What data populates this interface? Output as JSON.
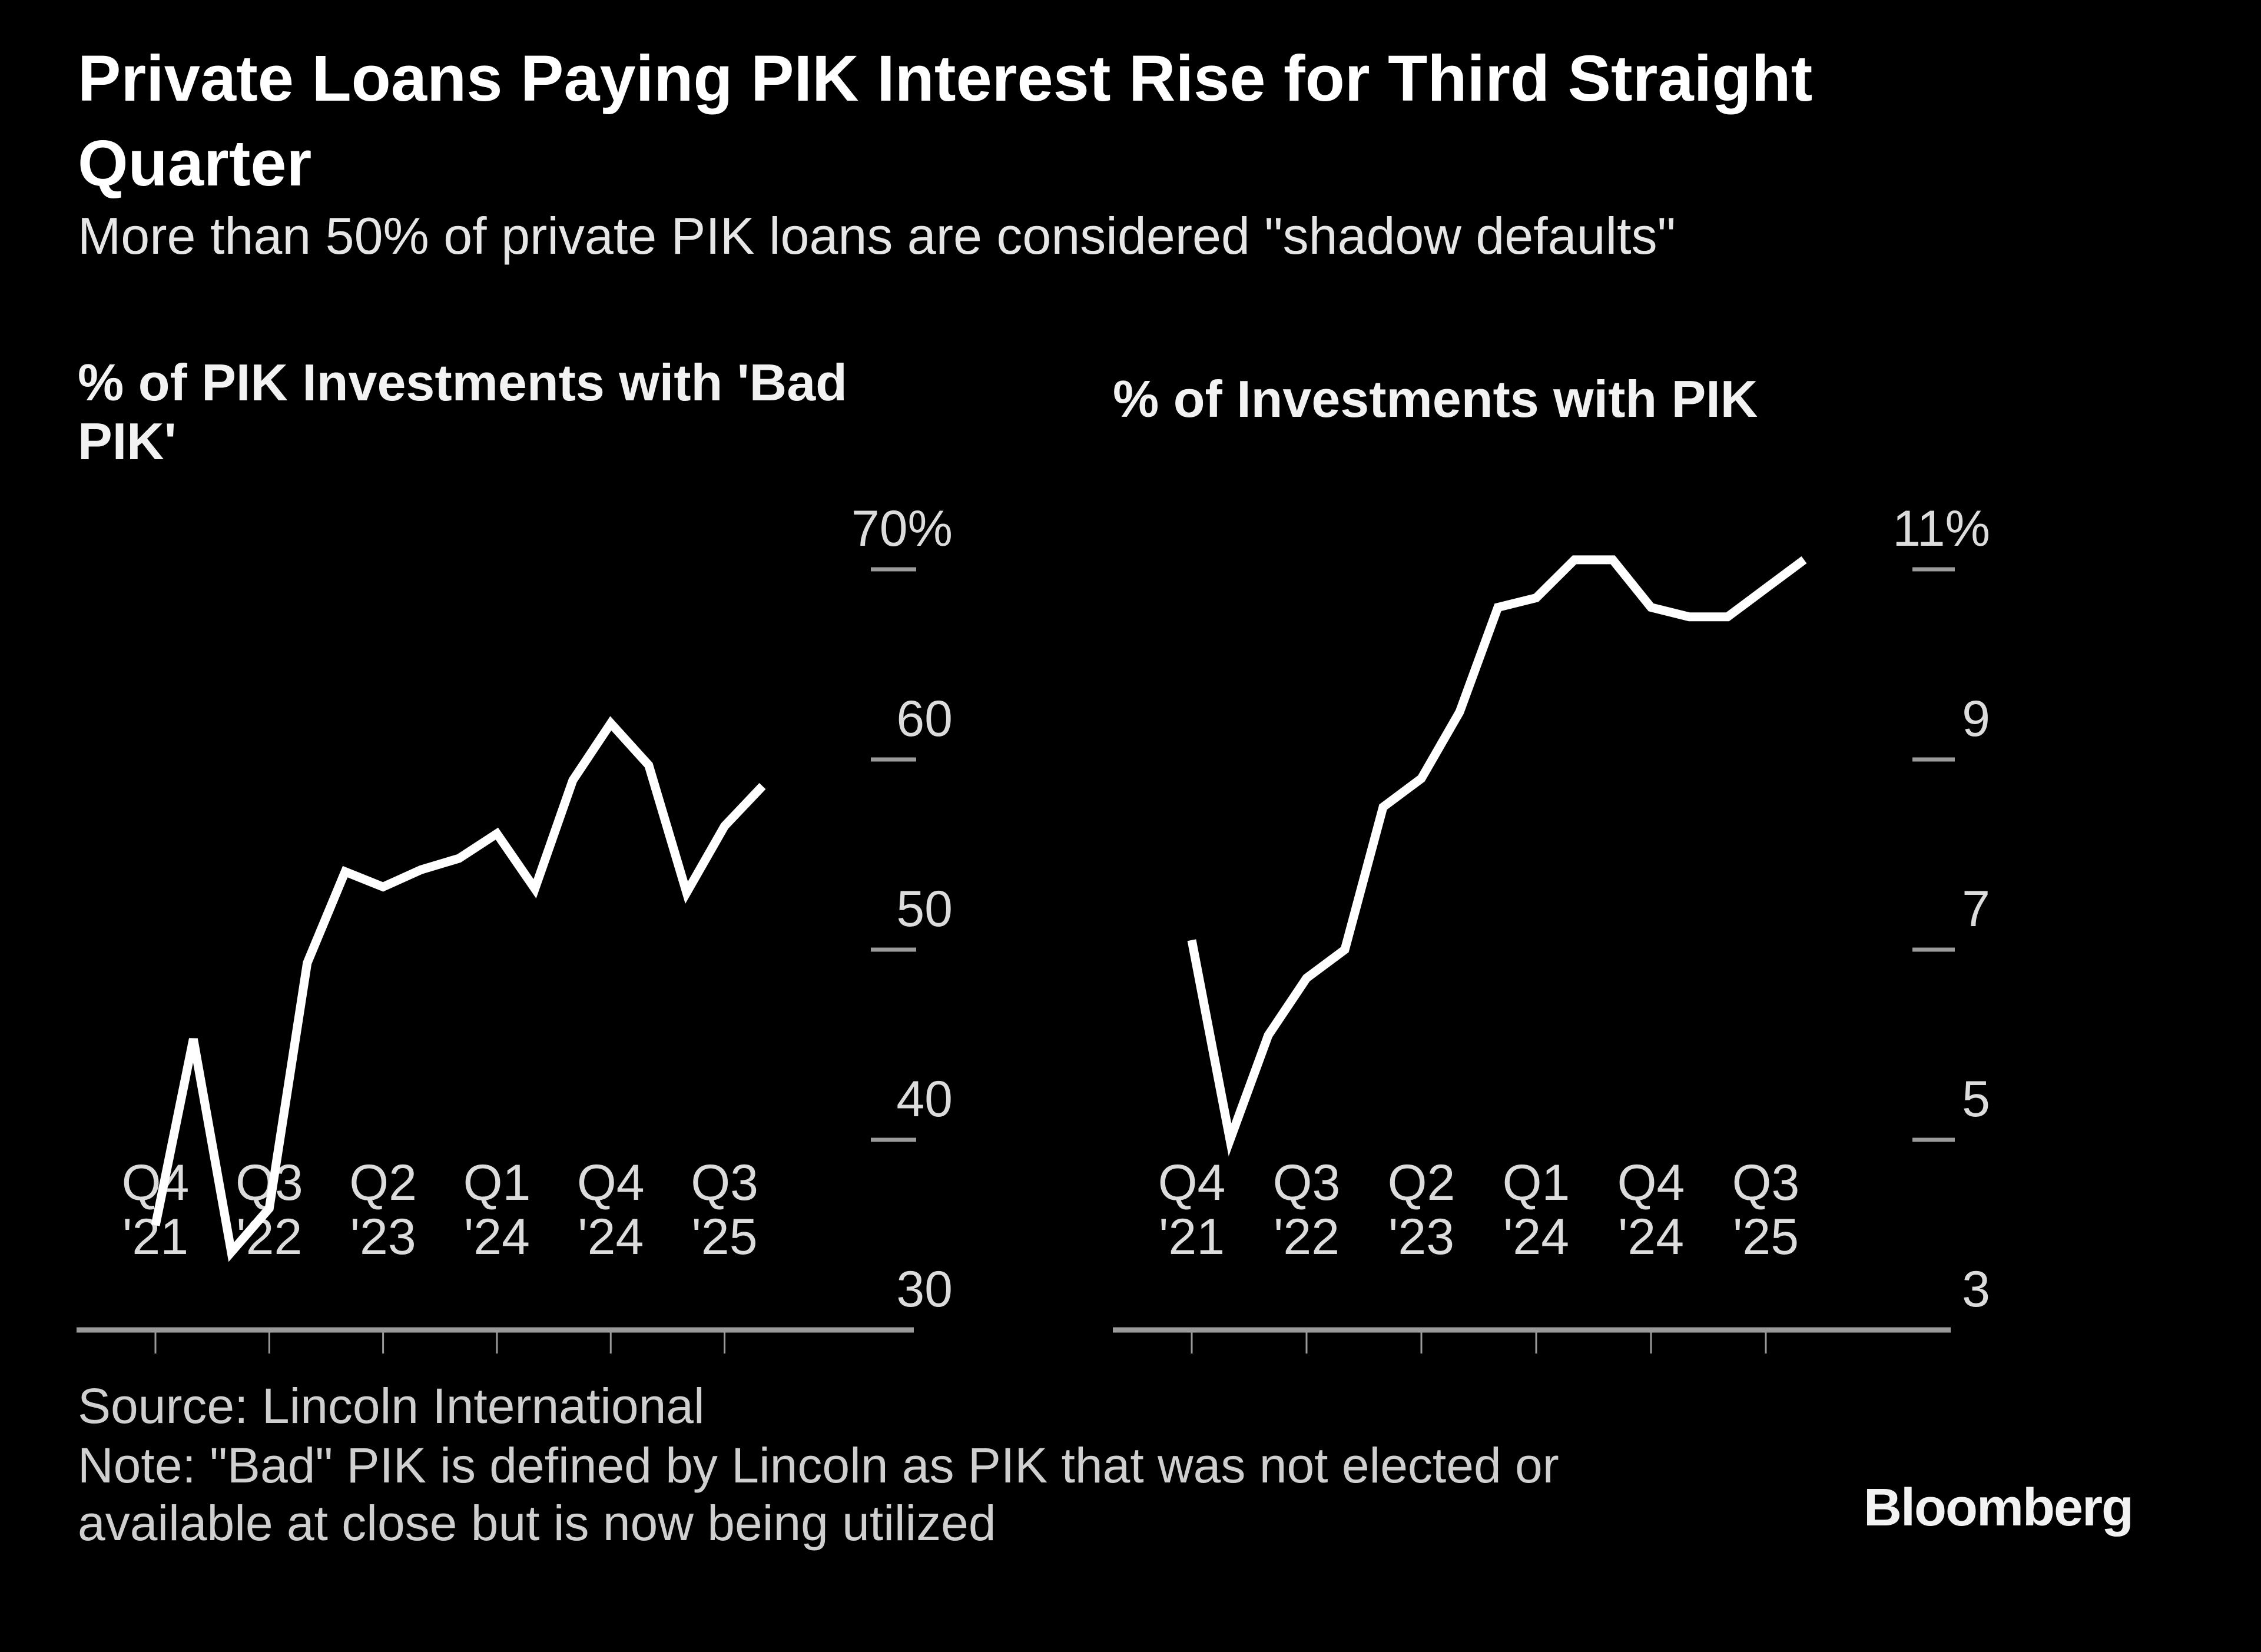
{
  "title": "Private Loans Paying PIK Interest Rise for Third Straight Quarter",
  "subtitle": "More than 50% of private PIK loans are considered \"shadow defaults\"",
  "footer": {
    "source": "Source: Lincoln International",
    "note": "Note: \"Bad\" PIK is defined by Lincoln as PIK that was not elected or available at close but is now being utilized",
    "logo": "Bloomberg"
  },
  "colors": {
    "background": "#000000",
    "line": "#ffffff",
    "axis": "#9a9a9a",
    "text": "#dcdcdc"
  },
  "chart_data": [
    {
      "type": "line",
      "title": "% of PIK Investments with 'Bad PIK'",
      "x": [
        "Q4 '21",
        "Q1 '22",
        "Q2 '22",
        "Q3 '22",
        "Q4 '22",
        "Q1 '23",
        "Q2 '23",
        "Q3 '23",
        "Q4 '23",
        "Q1 '24",
        "Q2 '24",
        "Q3 '24",
        "Q4 '24",
        "Q1 '25",
        "Q2 '25",
        "Q3 '25",
        "Q4 '25"
      ],
      "values": [
        35.5,
        45.3,
        34.1,
        36.4,
        49.3,
        54.1,
        53.3,
        54.2,
        54.8,
        56.1,
        53.2,
        58.9,
        61.9,
        59.7,
        53.0,
        56.5,
        58.6
      ],
      "ylim": [
        30,
        70
      ],
      "y_ticks": [
        70,
        60,
        50,
        40,
        30
      ],
      "y_tick_labels": [
        "70%",
        "60",
        "50",
        "40",
        "30"
      ],
      "x_tick_labels": [
        [
          "Q4",
          "'21"
        ],
        [
          "Q3",
          "'22"
        ],
        [
          "Q2",
          "'23"
        ],
        [
          "Q1",
          "'24"
        ],
        [
          "Q4",
          "'24"
        ],
        [
          "Q3",
          "'25"
        ]
      ],
      "x_tick_index": [
        0,
        3,
        6,
        9,
        12,
        15
      ],
      "y_axis_side": "right",
      "grid": false
    },
    {
      "type": "line",
      "title": "% of Investments with PIK",
      "x": [
        "Q4 '21",
        "Q1 '22",
        "Q2 '22",
        "Q3 '22",
        "Q4 '22",
        "Q1 '23",
        "Q2 '23",
        "Q3 '23",
        "Q4 '23",
        "Q1 '24",
        "Q2 '24",
        "Q3 '24",
        "Q4 '24",
        "Q1 '25",
        "Q2 '25",
        "Q3 '25",
        "Q4 '25"
      ],
      "values": [
        7.1,
        5.0,
        6.1,
        6.7,
        7.0,
        8.5,
        8.8,
        9.5,
        10.6,
        10.7,
        11.1,
        11.1,
        10.6,
        10.5,
        10.5,
        10.8,
        11.1
      ],
      "ylim": [
        3,
        11
      ],
      "y_ticks": [
        11,
        9,
        7,
        5,
        3
      ],
      "y_tick_labels": [
        "11%",
        "9",
        "7",
        "5",
        "3"
      ],
      "x_tick_labels": [
        [
          "Q4",
          "'21"
        ],
        [
          "Q3",
          "'22"
        ],
        [
          "Q2",
          "'23"
        ],
        [
          "Q1",
          "'24"
        ],
        [
          "Q4",
          "'24"
        ],
        [
          "Q3",
          "'25"
        ]
      ],
      "x_tick_index": [
        0,
        3,
        6,
        9,
        12,
        15
      ],
      "y_axis_side": "right",
      "grid": false
    }
  ]
}
